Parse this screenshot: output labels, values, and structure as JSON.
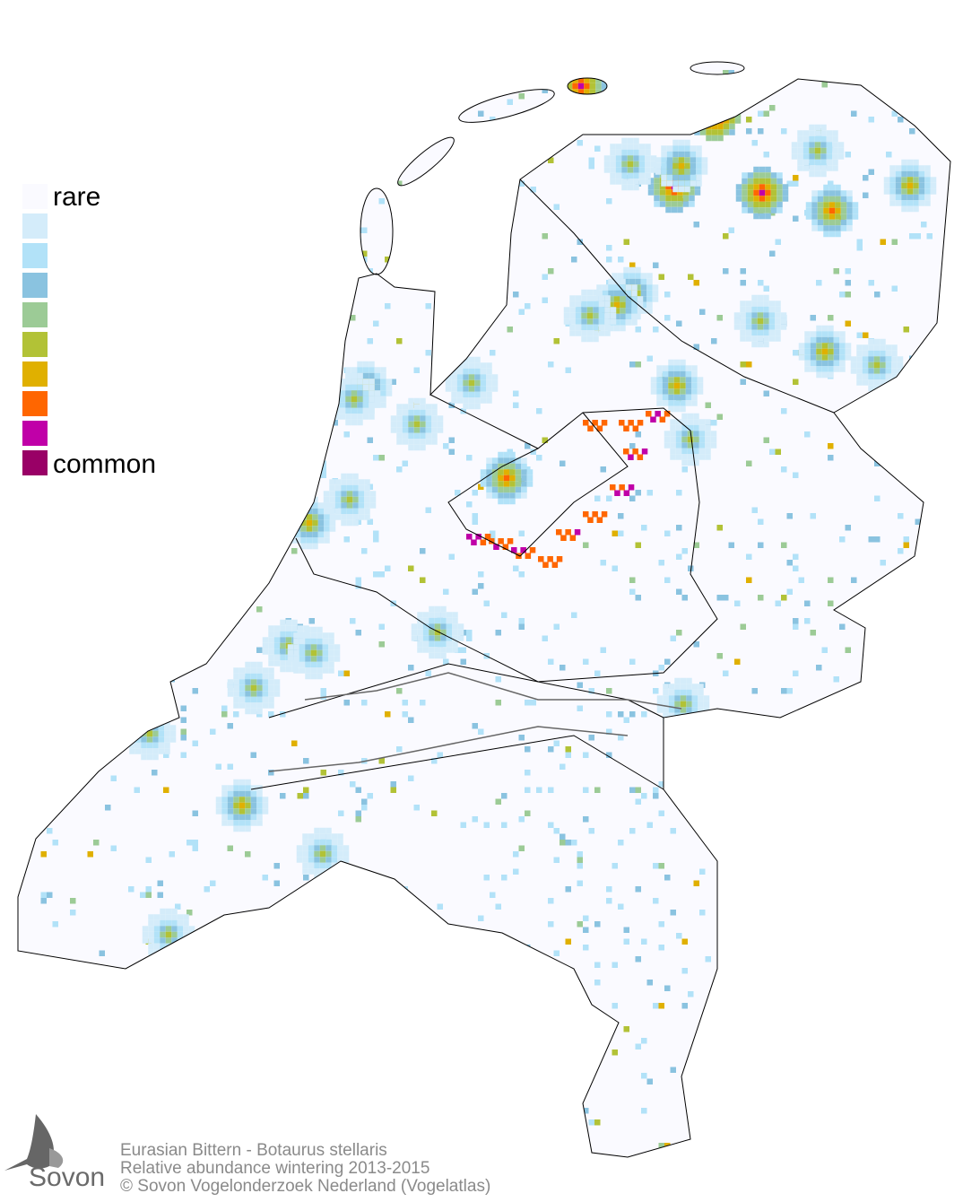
{
  "legend": {
    "top_label": "rare",
    "bottom_label": "common",
    "colors": [
      "#fafaff",
      "#d4ecfa",
      "#b2e2f8",
      "#8ac3e0",
      "#9ccb96",
      "#b2c236",
      "#e0b000",
      "#ff6600",
      "#c000a8",
      "#990066"
    ]
  },
  "caption": {
    "line1": "Eurasian Bittern - Botaurus stellaris",
    "line2": "Relative abundance wintering 2013-2015",
    "line3": "© Sovon Vogelonderzoek Nederland (Vogelatlas)"
  },
  "logo": {
    "text": "Sovon"
  }
}
